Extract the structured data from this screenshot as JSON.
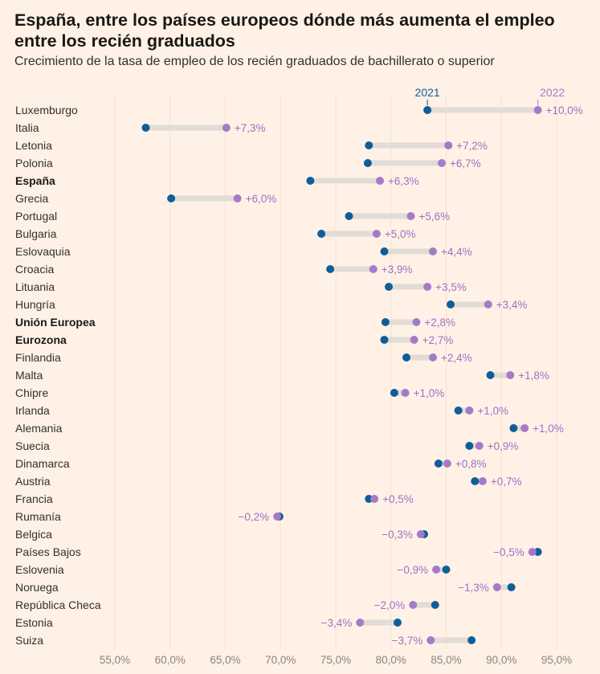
{
  "header": {
    "title": "España, entre los países europeos dónde más aumenta el empleo entre los recién graduados",
    "subtitle": "Crecimiento de la tasa de empleo de los recién graduados de bachillerato o superior"
  },
  "colors": {
    "background": "#fff1e5",
    "series_2021": "#0f5e99",
    "series_2022": "#a57ac9",
    "connector": "#e2dcd6",
    "gridline": "#efe2d6"
  },
  "chart_data": {
    "type": "dumbbell",
    "xlim": [
      54,
      97
    ],
    "xticks": [
      55,
      60,
      65,
      70,
      75,
      80,
      85,
      90,
      95
    ],
    "xtick_labels": [
      "55,0%",
      "60,0%",
      "65,0%",
      "70,0%",
      "75,0%",
      "80,0%",
      "85,0%",
      "90,0%",
      "95,0%"
    ],
    "grid": "vertical",
    "series_names": [
      "2021",
      "2022"
    ],
    "rows": [
      {
        "name": "Luxemburgo",
        "v2021": 83.3,
        "v2022": 93.3,
        "label": "+10,0%",
        "bold": false
      },
      {
        "name": "Italia",
        "v2021": 57.8,
        "v2022": 65.1,
        "label": "+7,3%",
        "bold": false
      },
      {
        "name": "Letonia",
        "v2021": 78.0,
        "v2022": 85.2,
        "label": "+7,2%",
        "bold": false
      },
      {
        "name": "Polonia",
        "v2021": 77.9,
        "v2022": 84.6,
        "label": "+6,7%",
        "bold": false
      },
      {
        "name": "España",
        "v2021": 72.7,
        "v2022": 79.0,
        "label": "+6,3%",
        "bold": true
      },
      {
        "name": "Grecia",
        "v2021": 60.1,
        "v2022": 66.1,
        "label": "+6,0%",
        "bold": false
      },
      {
        "name": "Portugal",
        "v2021": 76.2,
        "v2022": 81.8,
        "label": "+5,6%",
        "bold": false
      },
      {
        "name": "Bulgaria",
        "v2021": 73.7,
        "v2022": 78.7,
        "label": "+5,0%",
        "bold": false
      },
      {
        "name": "Eslovaquia",
        "v2021": 79.4,
        "v2022": 83.8,
        "label": "+4,4%",
        "bold": false
      },
      {
        "name": "Croacia",
        "v2021": 74.5,
        "v2022": 78.4,
        "label": "+3,9%",
        "bold": false
      },
      {
        "name": "Lituania",
        "v2021": 79.8,
        "v2022": 83.3,
        "label": "+3,5%",
        "bold": false
      },
      {
        "name": "Hungría",
        "v2021": 85.4,
        "v2022": 88.8,
        "label": "+3,4%",
        "bold": false
      },
      {
        "name": "Unión Europea",
        "v2021": 79.5,
        "v2022": 82.3,
        "label": "+2,8%",
        "bold": true
      },
      {
        "name": "Eurozona",
        "v2021": 79.4,
        "v2022": 82.1,
        "label": "+2,7%",
        "bold": true
      },
      {
        "name": "Finlandia",
        "v2021": 81.4,
        "v2022": 83.8,
        "label": "+2,4%",
        "bold": false
      },
      {
        "name": "Malta",
        "v2021": 89.0,
        "v2022": 90.8,
        "label": "+1,8%",
        "bold": false
      },
      {
        "name": "Chipre",
        "v2021": 80.3,
        "v2022": 81.3,
        "label": "+1,0%",
        "bold": false
      },
      {
        "name": "Irlanda",
        "v2021": 86.1,
        "v2022": 87.1,
        "label": "+1,0%",
        "bold": false
      },
      {
        "name": "Alemania",
        "v2021": 91.1,
        "v2022": 92.1,
        "label": "+1,0%",
        "bold": false
      },
      {
        "name": "Suecia",
        "v2021": 87.1,
        "v2022": 88.0,
        "label": "+0,9%",
        "bold": false
      },
      {
        "name": "Dinamarca",
        "v2021": 84.3,
        "v2022": 85.1,
        "label": "+0,8%",
        "bold": false
      },
      {
        "name": "Austria",
        "v2021": 87.6,
        "v2022": 88.3,
        "label": "+0,7%",
        "bold": false
      },
      {
        "name": "Francia",
        "v2021": 78.0,
        "v2022": 78.5,
        "label": "+0,5%",
        "bold": false
      },
      {
        "name": "Rumanía",
        "v2021": 69.9,
        "v2022": 69.7,
        "label": "−0,2%",
        "bold": false
      },
      {
        "name": "Belgica",
        "v2021": 83.0,
        "v2022": 82.7,
        "label": "−0,3%",
        "bold": false
      },
      {
        "name": "Países Bajos",
        "v2021": 93.3,
        "v2022": 92.8,
        "label": "−0,5%",
        "bold": false
      },
      {
        "name": "Eslovenia",
        "v2021": 85.0,
        "v2022": 84.1,
        "label": "−0,9%",
        "bold": false
      },
      {
        "name": "Noruega",
        "v2021": 90.9,
        "v2022": 89.6,
        "label": "−1,3%",
        "bold": false
      },
      {
        "name": "República Checa",
        "v2021": 84.0,
        "v2022": 82.0,
        "label": "−2,0%",
        "bold": false
      },
      {
        "name": "Estonia",
        "v2021": 80.6,
        "v2022": 77.2,
        "label": "−3,4%",
        "bold": false
      },
      {
        "name": "Suiza",
        "v2021": 87.3,
        "v2022": 83.6,
        "label": "−3,7%",
        "bold": false
      }
    ]
  }
}
